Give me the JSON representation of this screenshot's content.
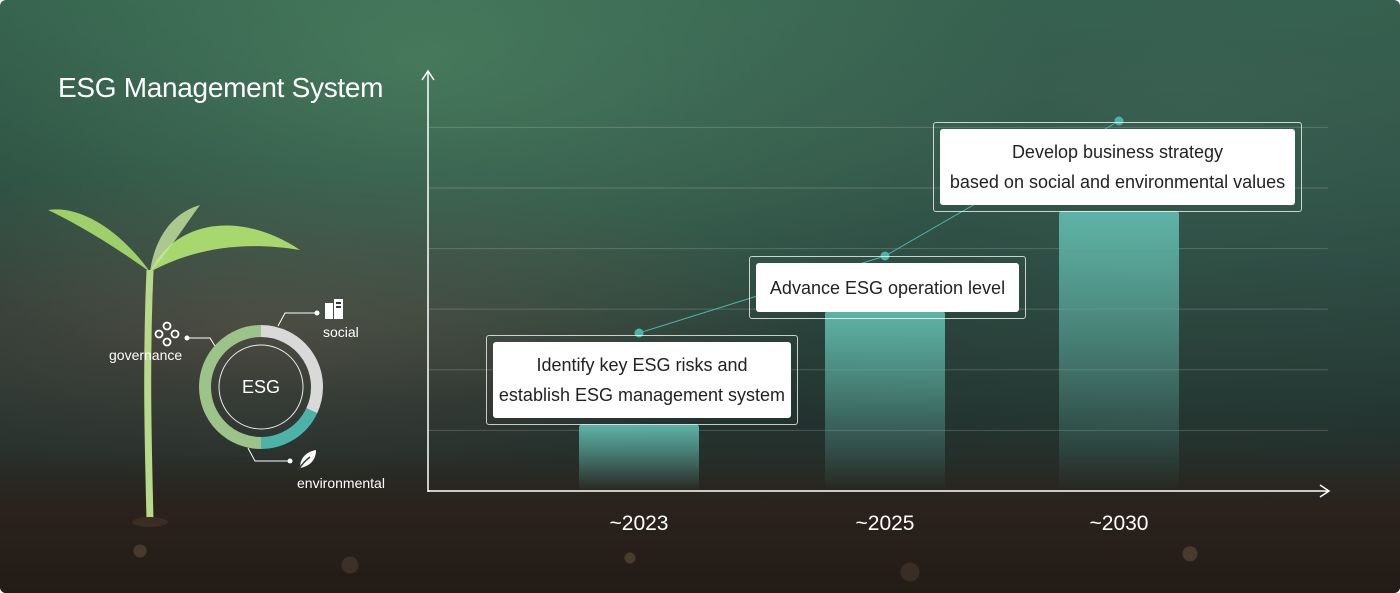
{
  "title": "ESG Management System",
  "esg_ring": {
    "center_label": "ESG",
    "segments": [
      {
        "name": "governance",
        "label": "governance",
        "color": "#9cc38a",
        "icon": "network-nodes-icon"
      },
      {
        "name": "social",
        "label": "social",
        "color": "#d9d9d9",
        "icon": "building-icon"
      },
      {
        "name": "environmental",
        "label": "environmental",
        "color": "#4db3a8",
        "icon": "leaf-icon"
      }
    ]
  },
  "chart_data": {
    "type": "bar",
    "categories": [
      "~2023",
      "~2025",
      "~2030"
    ],
    "values": [
      1,
      2.7,
      4.2
    ],
    "ylim": [
      0,
      6
    ],
    "grid": true,
    "bar_color": "#5fb3a6",
    "annotations": [
      {
        "category": "~2023",
        "lines": [
          "Identify key ESG risks and",
          "establish ESG management system"
        ]
      },
      {
        "category": "~2025",
        "lines": [
          "Advance ESG operation level"
        ]
      },
      {
        "category": "~2030",
        "lines": [
          "Develop business strategy",
          "based on social and environmental values"
        ]
      }
    ]
  },
  "colors": {
    "accent": "#4db3a8",
    "text": "#ffffff"
  }
}
